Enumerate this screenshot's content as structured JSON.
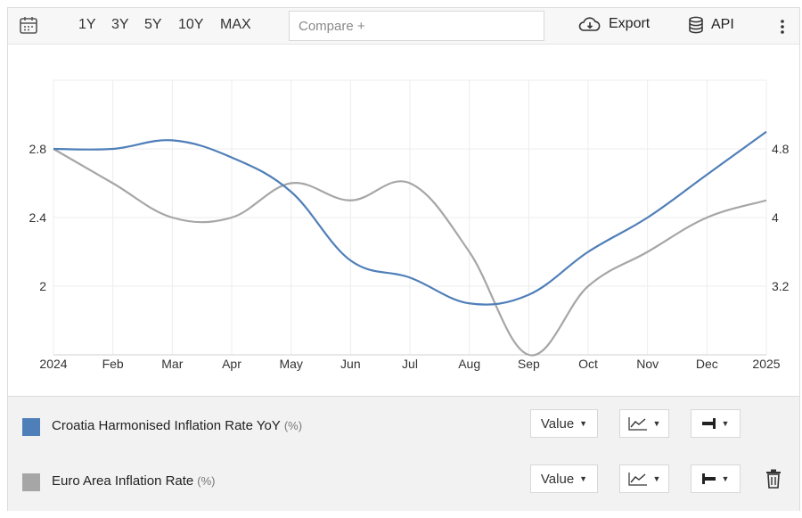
{
  "toolbar": {
    "ranges": [
      "1Y",
      "3Y",
      "5Y",
      "10Y",
      "MAX"
    ],
    "compare_placeholder": "Compare +",
    "export_label": "Export",
    "api_label": "API"
  },
  "legend": {
    "series": [
      {
        "name": "Croatia Harmonised Inflation Rate YoY",
        "unit": "(%)",
        "color": "#4f7fb8",
        "value_label": "Value"
      },
      {
        "name": "Euro Area Inflation Rate",
        "unit": "(%)",
        "color": "#a6a6a6",
        "value_label": "Value"
      }
    ]
  },
  "chart_data": {
    "type": "line",
    "categories": [
      "2024",
      "Feb",
      "Mar",
      "Apr",
      "May",
      "Jun",
      "Jul",
      "Aug",
      "Sep",
      "Oct",
      "Nov",
      "Dec",
      "2025"
    ],
    "series": [
      {
        "name": "Croatia Harmonised Inflation Rate YoY",
        "axis": "left",
        "values": [
          2.8,
          2.8,
          2.85,
          2.75,
          2.55,
          2.15,
          2.05,
          1.9,
          1.95,
          2.2,
          2.4,
          2.65,
          2.9
        ],
        "color": "#4f7fb8"
      },
      {
        "name": "Euro Area Inflation Rate",
        "axis": "right",
        "values": [
          4.8,
          4.4,
          4.0,
          4.0,
          4.4,
          4.2,
          4.4,
          3.6,
          2.4,
          3.2,
          3.6,
          4.0,
          4.2
        ],
        "color": "#a6a6a6"
      }
    ],
    "left_axis": {
      "ticks": [
        "2",
        "2.4",
        "2.8"
      ],
      "ylim": [
        1.6,
        3.2
      ]
    },
    "right_axis": {
      "ticks": [
        "3.2",
        "4",
        "4.8"
      ],
      "ylim": [
        2.4,
        5.6
      ]
    },
    "grid": true
  }
}
